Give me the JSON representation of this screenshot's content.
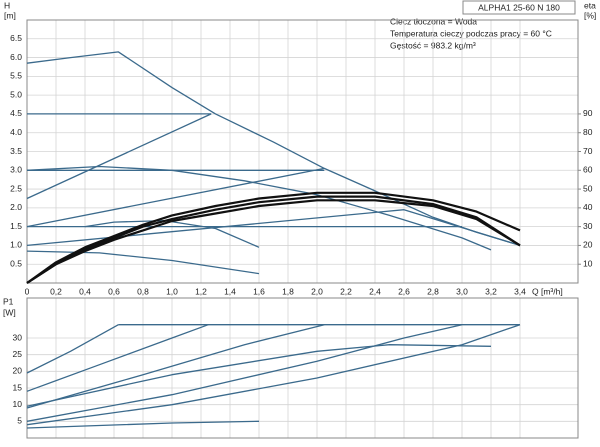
{
  "chart_data": [
    {
      "type": "line",
      "title": "ALPHA1 25-60 N 180",
      "annotations": [
        "Ciecz tłoczona = Woda",
        "Temperatura cieczy podczas pracy = 60 °C",
        "Gęstość = 983.2 kg/m³"
      ],
      "y_label": "H",
      "y_unit": "[m]",
      "y2_label": "eta",
      "y2_unit": "[%]",
      "x_label": "Q [m³/h]",
      "grid": true,
      "xlim": [
        0,
        3.8
      ],
      "xticks": [
        0,
        {
          "value": 0.2,
          "label": "0,2"
        },
        {
          "value": 0.4,
          "label": "0,4"
        },
        {
          "value": 0.6,
          "label": "0,6"
        },
        {
          "value": 0.8,
          "label": "0,8"
        },
        {
          "value": 1.0,
          "label": "1,0"
        },
        {
          "value": 1.2,
          "label": "1,2"
        },
        {
          "value": 1.4,
          "label": "1,4"
        },
        {
          "value": 1.6,
          "label": "1,6"
        },
        {
          "value": 1.8,
          "label": "1,8"
        },
        {
          "value": 2.0,
          "label": "2,0"
        },
        {
          "value": 2.2,
          "label": "2,2"
        },
        {
          "value": 2.4,
          "label": "2,4"
        },
        {
          "value": 2.6,
          "label": "2,6"
        },
        {
          "value": 2.8,
          "label": "2,8"
        },
        {
          "value": 3.0,
          "label": "3,0"
        },
        {
          "value": 3.2,
          "label": "3,2"
        },
        {
          "value": 3.4,
          "label": "3,4"
        }
      ],
      "ylim": [
        0,
        7
      ],
      "yticks": [
        0.5,
        {
          "value": 1,
          "label": "1.0"
        },
        1.5,
        {
          "value": 2,
          "label": "2.0"
        },
        2.5,
        {
          "value": 3,
          "label": "3.0"
        },
        3.5,
        {
          "value": 4,
          "label": "4.0"
        },
        4.5,
        {
          "value": 5,
          "label": "5.0"
        },
        5.5,
        {
          "value": 6,
          "label": "6.0"
        },
        6.5
      ],
      "y2lim": [
        0,
        140
      ],
      "y2ticks": [
        10,
        20,
        30,
        40,
        50,
        60,
        70,
        80,
        90
      ],
      "series": [
        {
          "color": "#3b6a8c",
          "x": [
            0,
            0.3,
            0.63,
            1.0,
            1.3,
            1.7,
            2.05,
            2.4,
            2.8,
            3.1,
            3.4
          ],
          "values": [
            5.85,
            6.0,
            6.15,
            5.2,
            4.5,
            3.75,
            3.05,
            2.45,
            1.75,
            1.35,
            1.0
          ]
        },
        {
          "color": "#3b6a8c",
          "x": [
            0,
            1.27
          ],
          "values": [
            2.25,
            4.5
          ]
        },
        {
          "color": "#3b6a8c",
          "x": [
            0,
            1.27
          ],
          "values": [
            4.5,
            4.5
          ]
        },
        {
          "color": "#3b6a8c",
          "x": [
            0,
            2.05
          ],
          "values": [
            3.0,
            3.0
          ]
        },
        {
          "color": "#3b6a8c",
          "x": [
            0,
            2.05
          ],
          "values": [
            1.5,
            3.05
          ]
        },
        {
          "color": "#3b6a8c",
          "x": [
            0,
            3.0
          ],
          "values": [
            1.5,
            1.5
          ]
        },
        {
          "color": "#3b6a8c",
          "x": [
            0,
            2.6,
            3.4
          ],
          "values": [
            1.0,
            1.95,
            1.0
          ]
        },
        {
          "color": "#3b6a8c",
          "x": [
            0,
            0.5,
            1.0,
            1.5,
            2.0,
            2.5,
            3.0,
            3.2
          ],
          "values": [
            3.0,
            3.1,
            3.0,
            2.72,
            2.35,
            1.8,
            1.2,
            0.88
          ]
        },
        {
          "color": "#3b6a8c",
          "x": [
            0.4,
            0.6,
            0.95,
            1.3,
            1.6
          ],
          "values": [
            1.5,
            1.62,
            1.66,
            1.45,
            0.95
          ]
        },
        {
          "color": "#3b6a8c",
          "x": [
            0,
            0.5,
            1.0,
            1.6
          ],
          "values": [
            0.85,
            0.8,
            0.6,
            0.25
          ]
        },
        {
          "color": "#111111",
          "axis": "y2",
          "x": [
            0,
            0.2,
            0.4,
            0.6,
            0.8,
            1.0,
            1.3,
            1.6,
            2.0,
            2.4,
            2.8,
            3.1,
            3.4
          ],
          "values": [
            0,
            11,
            19,
            25,
            31,
            36,
            41,
            45,
            48,
            48,
            44,
            38,
            28
          ]
        },
        {
          "color": "#111111",
          "axis": "y2",
          "x": [
            0,
            0.2,
            0.4,
            0.6,
            0.8,
            1.0,
            1.3,
            1.6,
            2.0,
            2.4,
            2.8,
            3.1,
            3.4
          ],
          "values": [
            0,
            10,
            18,
            24,
            30,
            34,
            39,
            43,
            46,
            46,
            42,
            35,
            20
          ]
        },
        {
          "color": "#111111",
          "axis": "y2",
          "x": [
            0,
            0.2,
            0.4,
            0.6,
            0.8,
            1.0,
            1.3,
            1.6,
            2.0,
            2.4,
            2.8,
            3.1,
            3.4
          ],
          "values": [
            0,
            10,
            17,
            23,
            28,
            33,
            37,
            41,
            44,
            44,
            41,
            34,
            20
          ]
        }
      ]
    },
    {
      "type": "line",
      "y_label": "P1",
      "y_unit": "[W]",
      "grid": true,
      "xlim": [
        0,
        3.8
      ],
      "xticks": [
        0,
        0.2,
        0.4,
        0.6,
        0.8,
        1.0,
        1.2,
        1.4,
        1.6,
        1.8,
        2.0,
        2.2,
        2.4,
        2.6,
        2.8,
        3.0,
        3.2,
        3.4
      ],
      "ylim": [
        0,
        42
      ],
      "yticks": [
        5,
        10,
        15,
        20,
        25,
        30
      ],
      "series": [
        {
          "color": "#3b6a8c",
          "x": [
            0.63,
            3.4
          ],
          "values": [
            34,
            34
          ]
        },
        {
          "color": "#3b6a8c",
          "x": [
            0,
            0.3,
            0.63
          ],
          "values": [
            19.5,
            26,
            34
          ]
        },
        {
          "color": "#3b6a8c",
          "x": [
            0,
            0.5,
            1.0,
            1.25
          ],
          "values": [
            14,
            22,
            30,
            34
          ]
        },
        {
          "color": "#3b6a8c",
          "x": [
            0,
            0.8,
            1.5,
            2.05
          ],
          "values": [
            9,
            19,
            28,
            34
          ]
        },
        {
          "color": "#3b6a8c",
          "x": [
            0,
            1.0,
            2.0,
            2.6,
            3.0
          ],
          "values": [
            5,
            13,
            23,
            30,
            34
          ]
        },
        {
          "color": "#3b6a8c",
          "x": [
            0,
            1.0,
            2.0,
            3.0,
            3.4
          ],
          "values": [
            4,
            10,
            18,
            28,
            34
          ]
        },
        {
          "color": "#3b6a8c",
          "x": [
            0,
            1.0,
            2.0,
            2.5,
            3.2
          ],
          "values": [
            9.5,
            19,
            26,
            28,
            27.5
          ]
        },
        {
          "color": "#3b6a8c",
          "x": [
            0,
            1.0,
            1.6
          ],
          "values": [
            3,
            4.5,
            5
          ]
        }
      ]
    }
  ]
}
